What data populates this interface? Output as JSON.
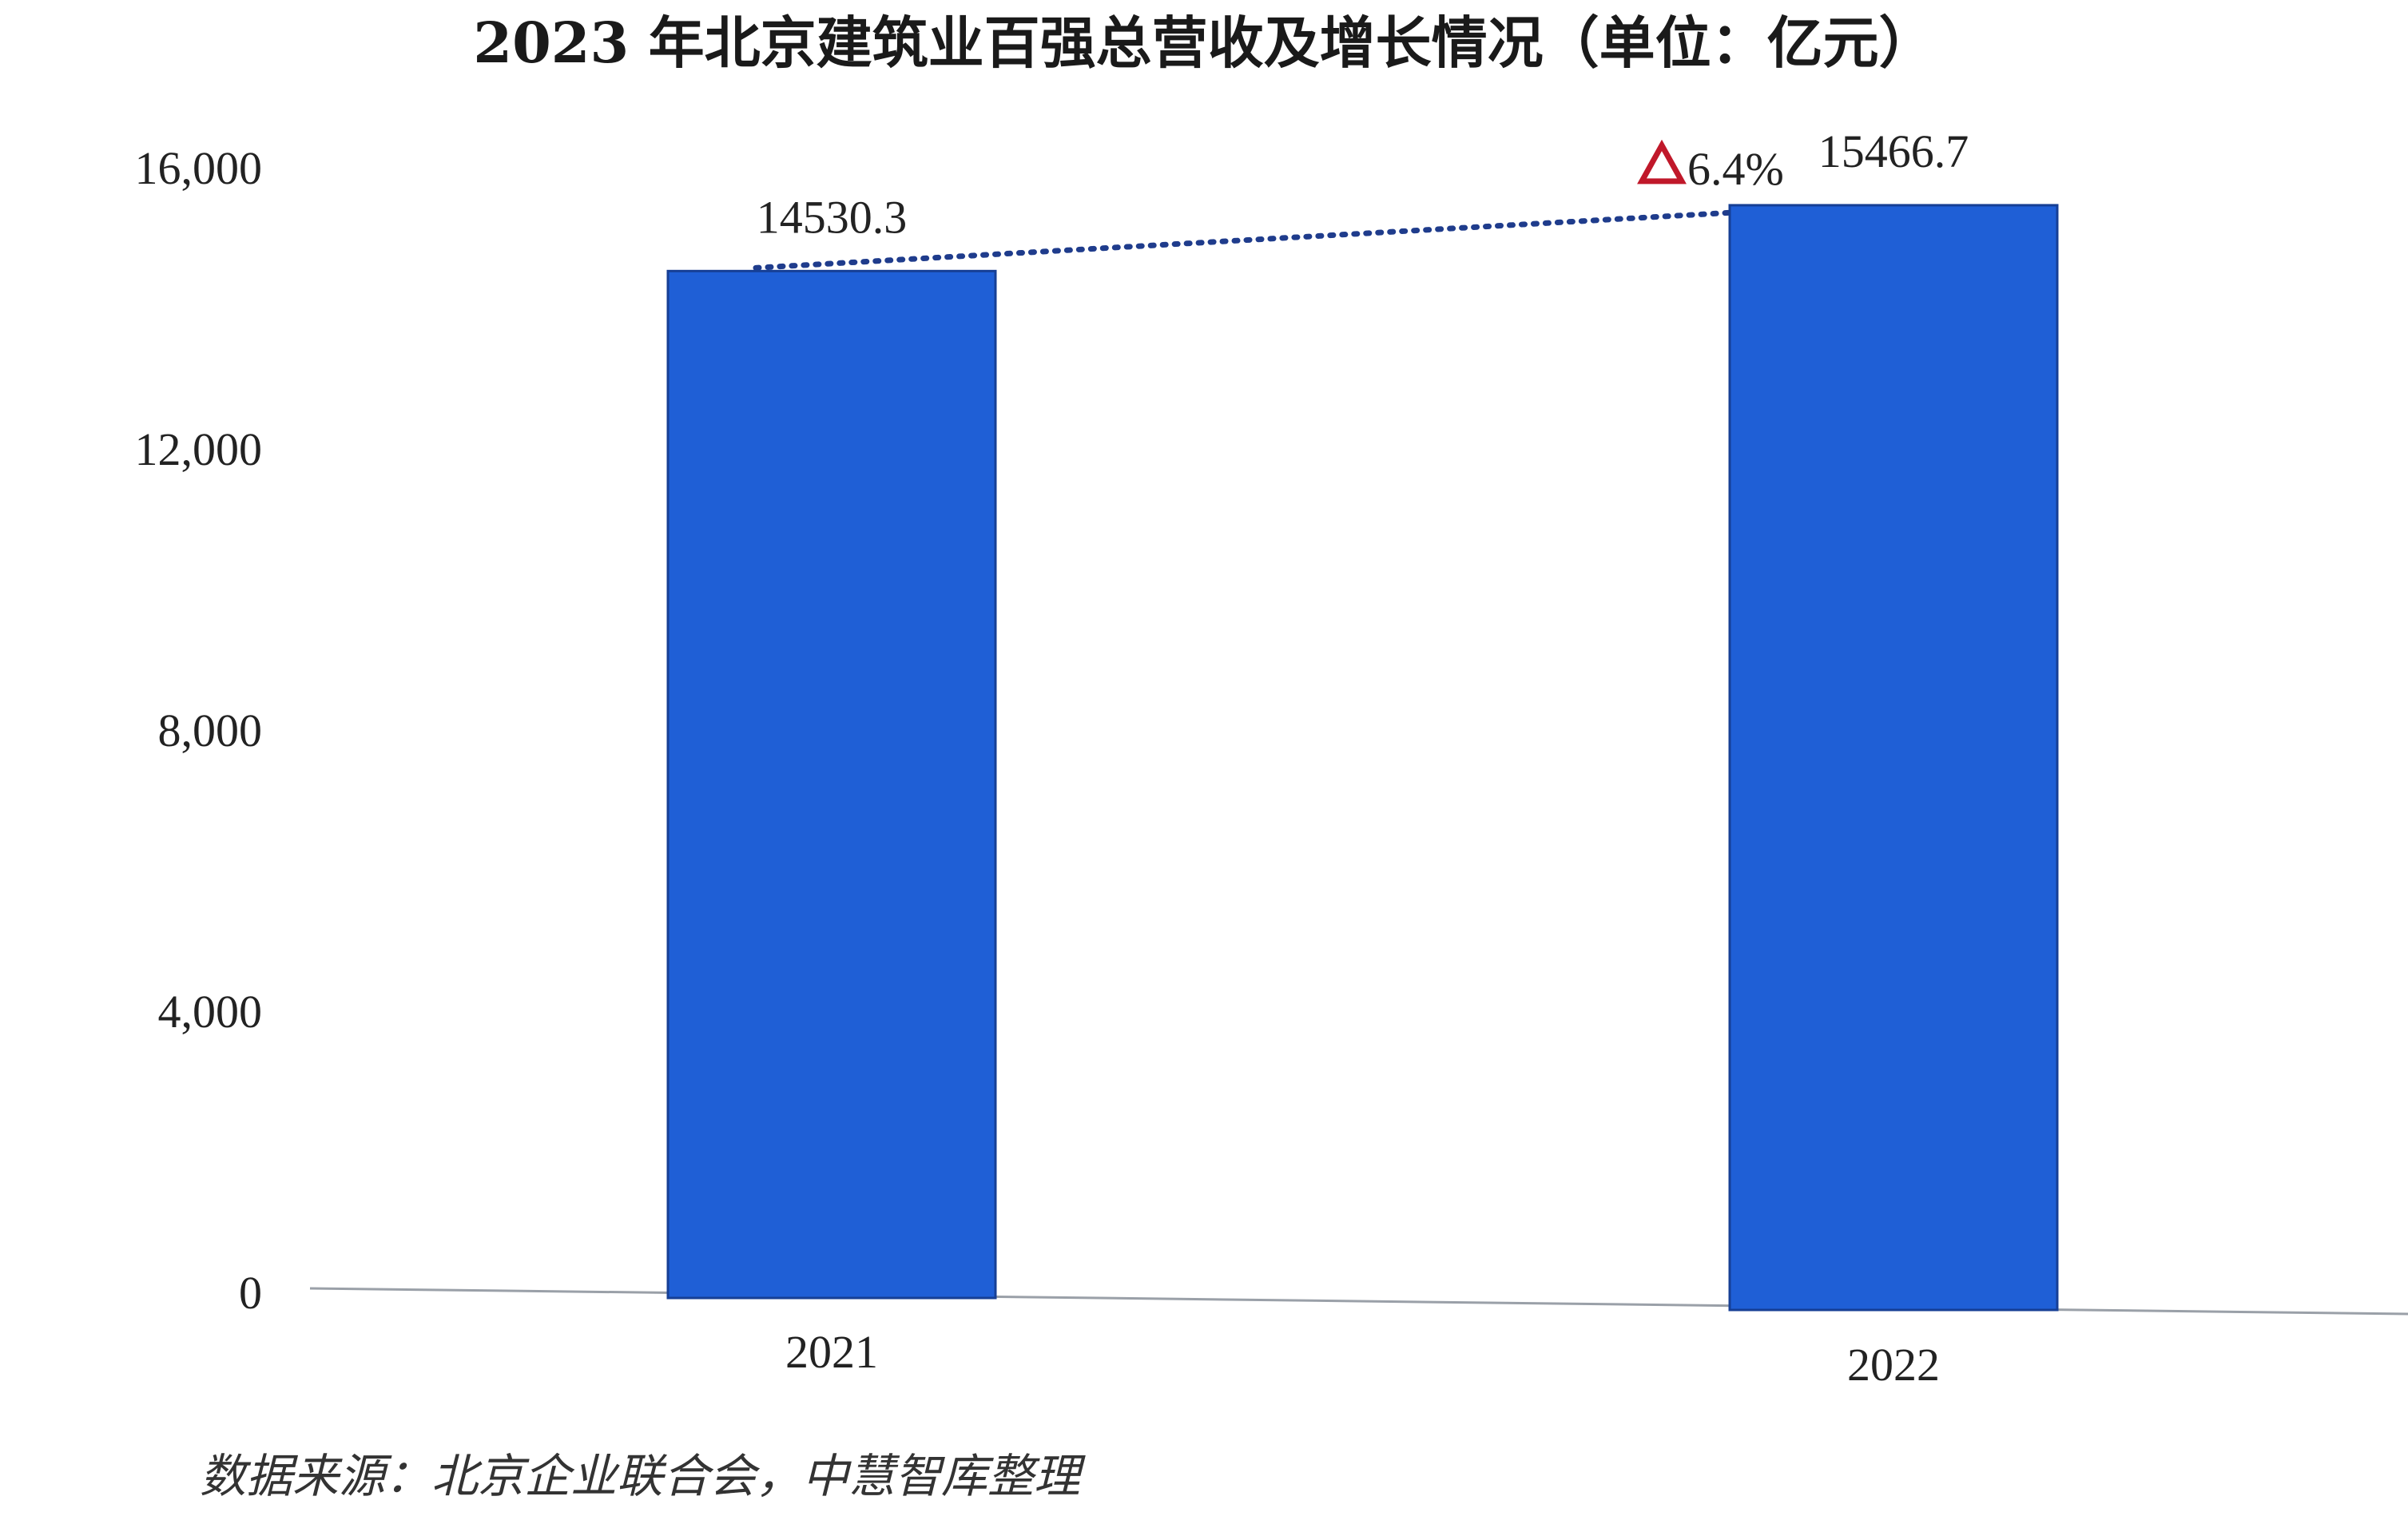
{
  "chart_data": {
    "type": "bar",
    "title": "2023 年北京建筑业百强总营收及增长情况（单位：亿元）",
    "categories": [
      "2021",
      "2022"
    ],
    "values": [
      14530.3,
      15466.7
    ],
    "data_labels": [
      "14530.3",
      "15466.7"
    ],
    "y_ticks": [
      0,
      4000,
      8000,
      12000,
      16000
    ],
    "y_tick_labels": [
      "0",
      "4,000",
      "8,000",
      "12,000",
      "16,000"
    ],
    "ylim": [
      0,
      16000
    ],
    "growth": {
      "label": "6.4%",
      "marker": "triangle-up-icon",
      "marker_color": "#c0182a",
      "connector_color": "#1f3c8c",
      "connector_style": "dotted"
    },
    "bar_color": "#1f5fd6",
    "grid": false,
    "legend": "none"
  },
  "source": "数据来源：北京企业联合会，中慧智库整理"
}
